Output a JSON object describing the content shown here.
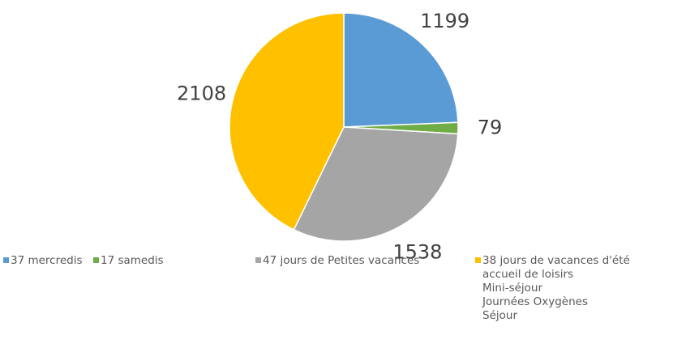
{
  "chart_data": {
    "type": "pie",
    "categories": [
      "37 mercredis",
      "17 samedis",
      "47 jours de Petites vacances",
      "38 jours de vacances d'été\naccueil de loisirs\nMini-séjour\nJournées Oxygènes\nSéjour"
    ],
    "values": [
      1199,
      79,
      1538,
      2108
    ],
    "colors": [
      "#5b9bd5",
      "#70ad47",
      "#a5a5a5",
      "#ffc000"
    ],
    "legend": "bottom"
  }
}
